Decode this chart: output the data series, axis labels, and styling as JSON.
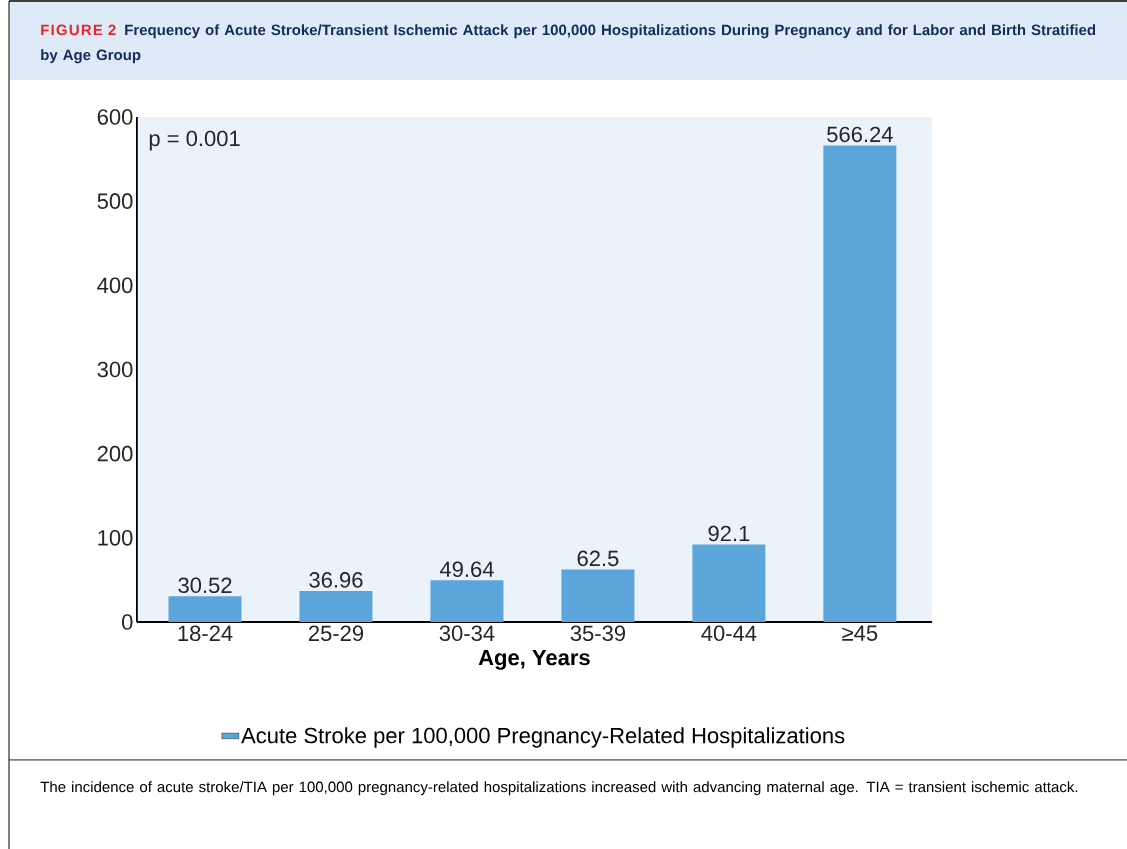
{
  "chart_data": {
    "type": "bar",
    "title": "Frequency of Acute Stroke/Transient Ischemic Attack per 100,000 Hospitalizations During Pregnancy and for Labor and Birth Stratified by Age Group",
    "xlabel": "Age, Years",
    "categories": [
      "18-24",
      "25-29",
      "30-34",
      "35-39",
      "40-44",
      "≥45"
    ],
    "series": [
      {
        "name": "Acute Stroke per 100,000 Pregnancy-Related Hospitalizations",
        "color": "#5ba5da",
        "values": [
          30.52,
          36.96,
          49.64,
          62.5,
          92.1,
          566.24
        ]
      }
    ],
    "ylim": [
      0,
      600
    ],
    "yticks": [
      0,
      100,
      200,
      300,
      400,
      500,
      600
    ],
    "data_labels": true,
    "legend": "bottom",
    "grid": false,
    "annotations": [
      "FIGURE 2",
      "p = 0.001",
      "The incidence of acute stroke/TIA per 100,000 pregnancy-related hospitalizations increased with advancing maternal age. TIA = transient ischemic attack."
    ]
  }
}
